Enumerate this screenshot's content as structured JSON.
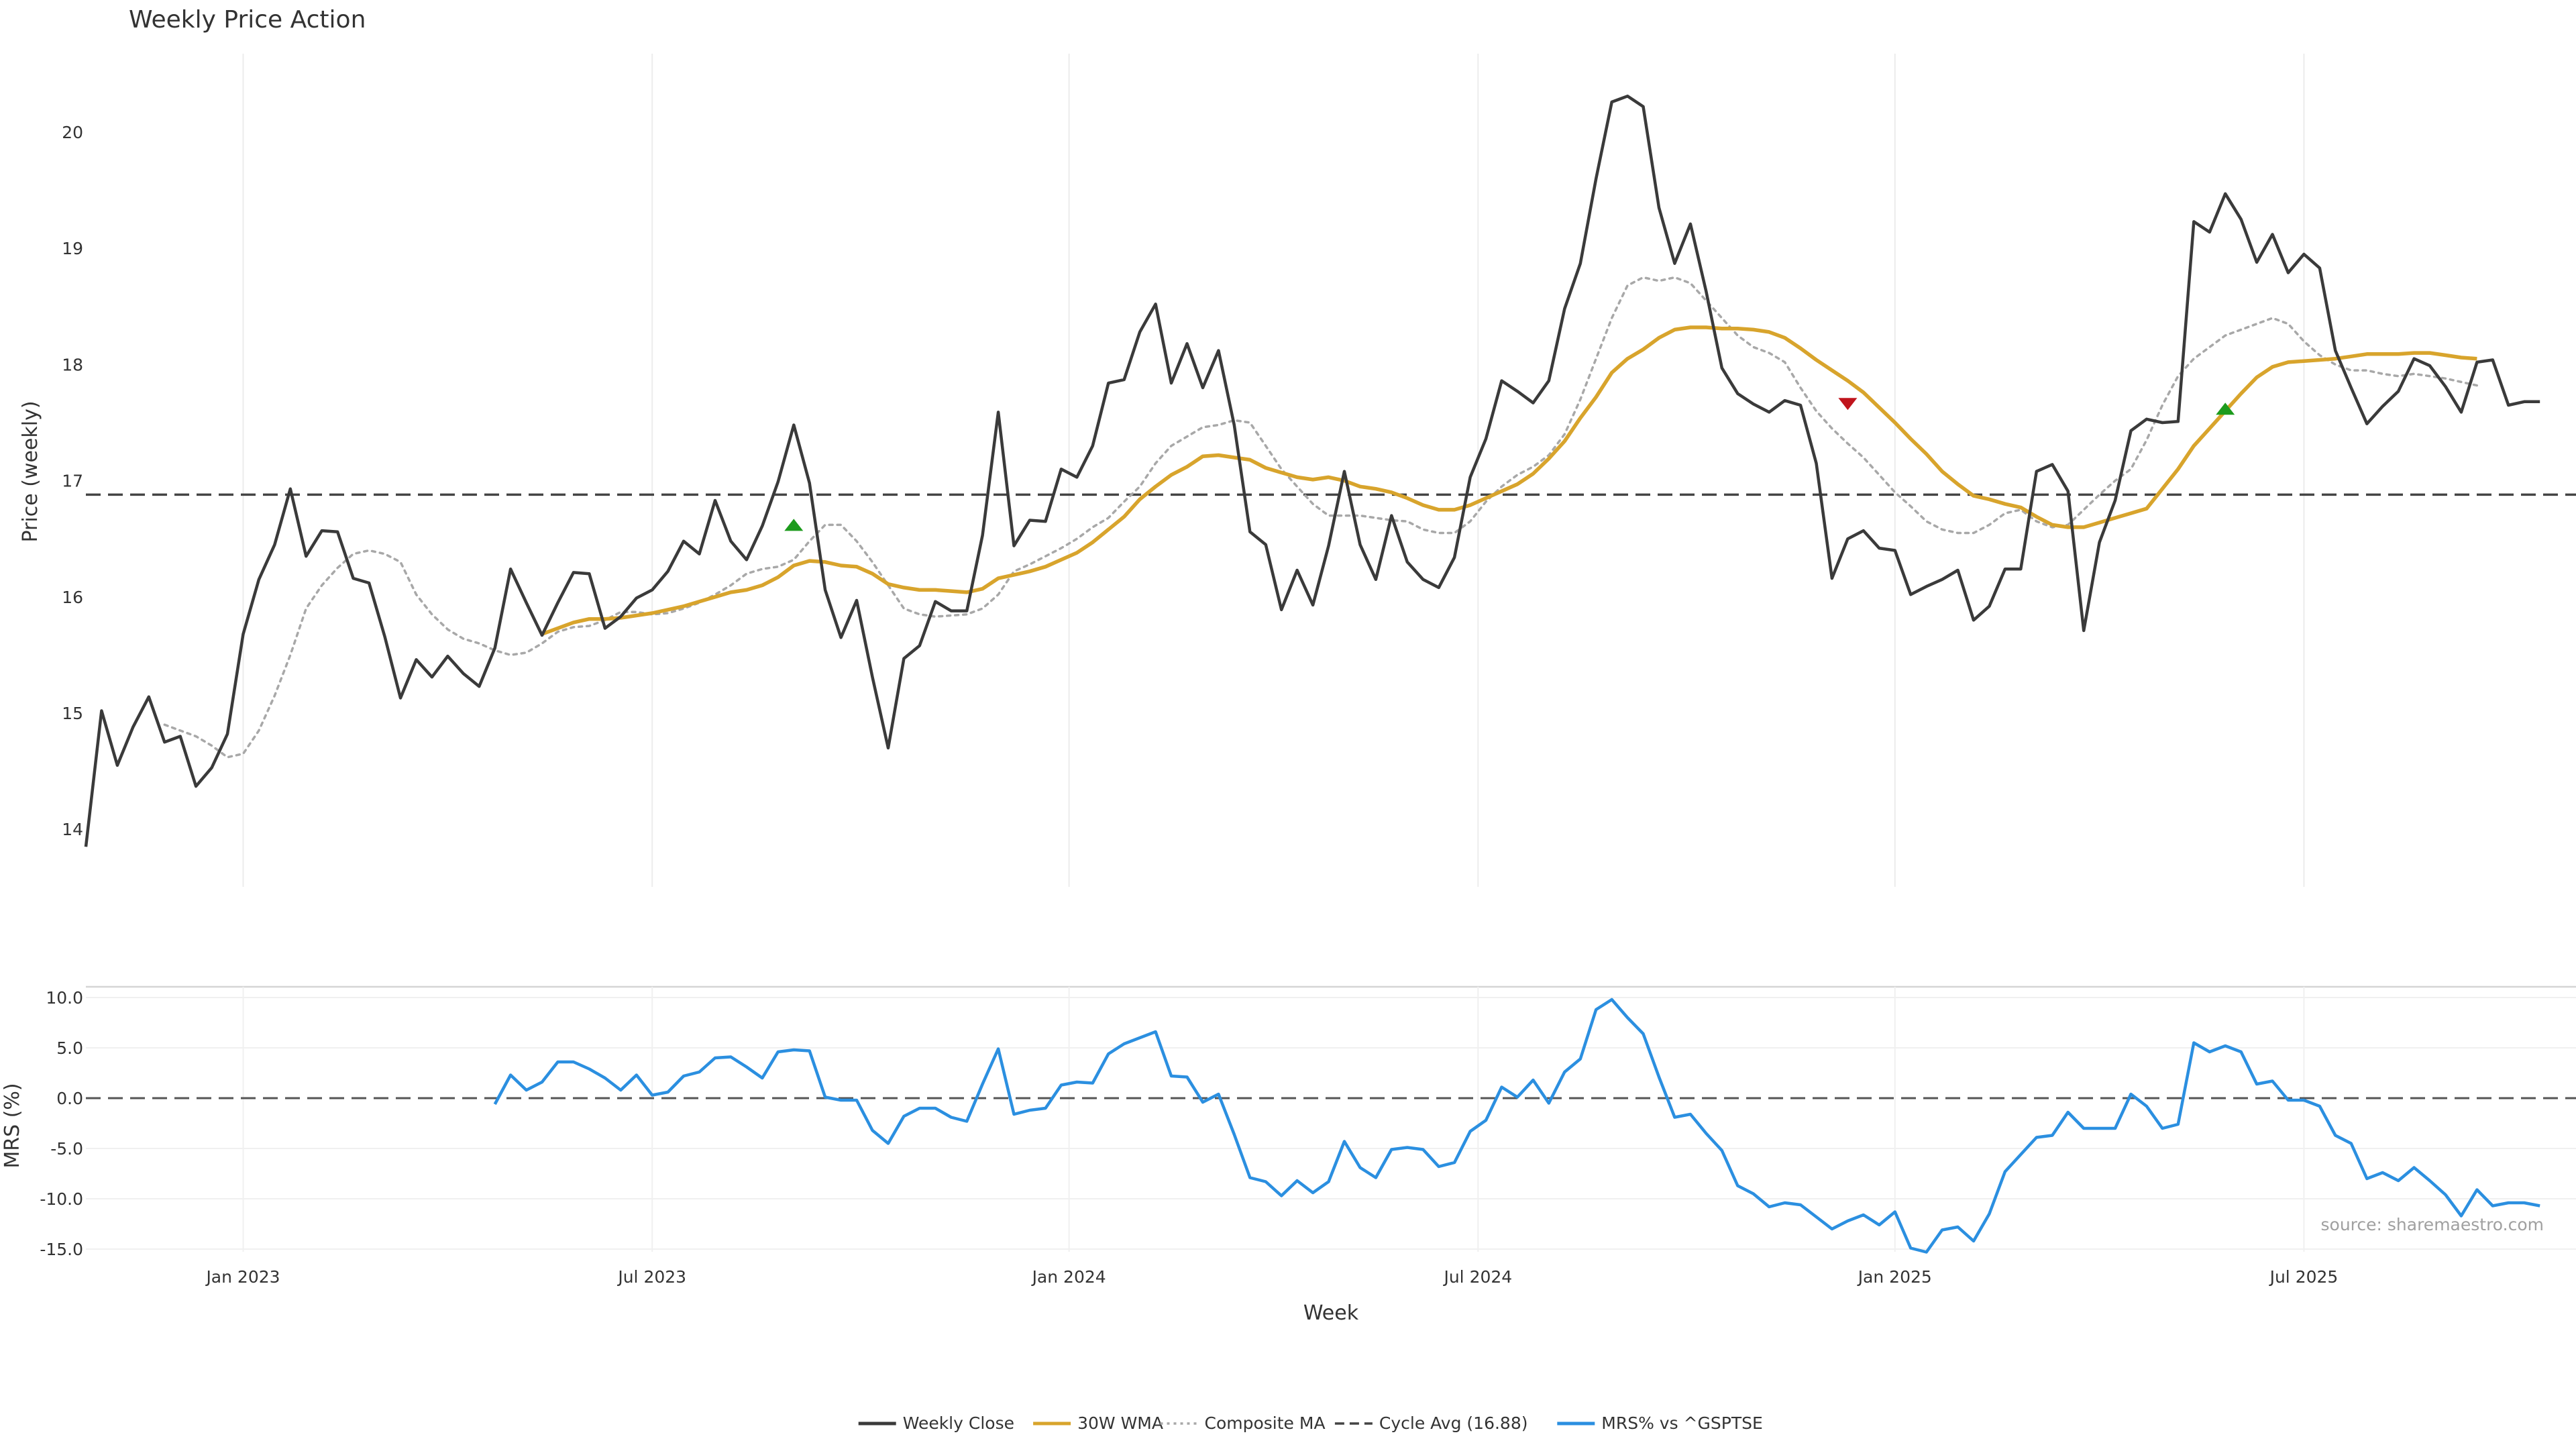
{
  "chart_data": [
    {
      "type": "line",
      "title": "Weekly Price Action",
      "ylabel": "Price (weekly)",
      "ylim": [
        13.8,
        20.6
      ],
      "yticks": [
        14,
        15,
        16,
        17,
        18,
        19,
        20
      ],
      "grid": "vertical",
      "reference_line": {
        "label": "Cycle Avg (16.88)",
        "value": 16.88
      },
      "series": [
        {
          "name": "Weekly Close",
          "color": "#3a3a3a",
          "values": [
            13.85,
            15.02,
            14.55,
            14.88,
            15.14,
            14.75,
            14.8,
            14.37,
            14.53,
            14.82,
            15.68,
            16.15,
            16.45,
            16.93,
            16.35,
            16.57,
            16.56,
            16.16,
            16.12,
            15.66,
            15.13,
            15.46,
            15.31,
            15.49,
            15.34,
            15.23,
            15.56,
            16.24,
            15.95,
            15.67,
            15.95,
            16.21,
            16.2,
            15.73,
            15.83,
            15.99,
            16.06,
            16.22,
            16.48,
            16.37,
            16.83,
            16.48,
            16.32,
            16.61,
            16.99,
            17.48,
            16.98,
            16.06,
            15.65,
            15.97,
            15.31,
            14.7,
            15.47,
            15.58,
            15.96,
            15.88,
            15.88,
            16.53,
            17.59,
            16.44,
            16.66,
            16.65,
            17.1,
            17.03,
            17.3,
            17.84,
            17.87,
            18.28,
            18.52,
            17.84,
            18.18,
            17.8,
            18.12,
            17.48,
            16.56,
            16.45,
            15.89,
            16.23,
            15.93,
            16.44,
            17.08,
            16.45,
            16.15,
            16.7,
            16.3,
            16.15,
            16.08,
            16.34,
            17.03,
            17.36,
            17.86,
            17.77,
            17.67,
            17.86,
            18.48,
            18.87,
            19.6,
            20.26,
            20.31,
            20.22,
            19.35,
            18.87,
            19.21,
            18.63,
            17.97,
            17.75,
            17.66,
            17.59,
            17.69,
            17.65,
            17.15,
            16.16,
            16.5,
            16.57,
            16.42,
            16.4,
            16.02,
            16.09,
            16.15,
            16.23,
            15.8,
            15.92,
            16.24,
            16.24,
            17.08,
            17.14,
            16.91,
            15.71,
            16.47,
            16.83,
            17.43,
            17.53,
            17.5,
            17.51,
            19.23,
            19.14,
            19.47,
            19.25,
            18.88,
            19.12,
            18.79,
            18.95,
            18.83,
            18.12,
            17.8,
            17.49,
            17.64,
            17.77,
            18.05,
            17.99,
            17.81,
            17.59,
            18.02,
            18.04,
            17.65,
            17.68,
            17.68
          ]
        },
        {
          "name": "30W WMA",
          "color": "#d8a42c",
          "start_index": 29,
          "values": [
            15.68,
            15.73,
            15.78,
            15.81,
            15.81,
            15.82,
            15.84,
            15.86,
            15.89,
            15.92,
            15.96,
            16.0,
            16.04,
            16.06,
            16.1,
            16.17,
            16.27,
            16.31,
            16.3,
            16.27,
            16.26,
            16.2,
            16.11,
            16.08,
            16.06,
            16.06,
            16.05,
            16.04,
            16.07,
            16.16,
            16.19,
            16.22,
            16.26,
            16.32,
            16.38,
            16.47,
            16.58,
            16.69,
            16.84,
            16.95,
            17.05,
            17.12,
            17.21,
            17.22,
            17.2,
            17.18,
            17.11,
            17.07,
            17.03,
            17.01,
            17.03,
            17.0,
            16.95,
            16.93,
            16.9,
            16.85,
            16.79,
            16.75,
            16.75,
            16.79,
            16.85,
            16.91,
            16.97,
            17.06,
            17.19,
            17.34,
            17.54,
            17.72,
            17.93,
            18.05,
            18.13,
            18.23,
            18.3,
            18.32,
            18.32,
            18.31,
            18.31,
            18.3,
            18.28,
            18.23,
            18.14,
            18.04,
            17.95,
            17.86,
            17.76,
            17.63,
            17.5,
            17.36,
            17.23,
            17.08,
            16.97,
            16.87,
            16.84,
            16.8,
            16.77,
            16.69,
            16.62,
            16.6,
            16.6,
            16.64,
            16.68,
            16.72,
            16.76,
            16.93,
            17.1,
            17.3,
            17.45,
            17.6,
            17.75,
            17.89,
            17.98,
            18.02,
            18.03,
            18.04,
            18.05,
            18.07,
            18.09,
            18.09,
            18.09,
            18.1,
            18.1,
            18.08,
            18.06,
            18.05
          ]
        },
        {
          "name": "Composite MA",
          "color": "#a8a8a8",
          "start_index": 5,
          "values": [
            14.9,
            14.85,
            14.8,
            14.72,
            14.62,
            14.65,
            14.85,
            15.15,
            15.5,
            15.9,
            16.1,
            16.25,
            16.37,
            16.4,
            16.37,
            16.3,
            16.02,
            15.85,
            15.72,
            15.64,
            15.6,
            15.54,
            15.5,
            15.52,
            15.6,
            15.7,
            15.74,
            15.75,
            15.8,
            15.87,
            15.87,
            15.85,
            15.86,
            15.9,
            15.95,
            16.02,
            16.1,
            16.2,
            16.24,
            16.26,
            16.32,
            16.48,
            16.62,
            16.62,
            16.48,
            16.3,
            16.1,
            15.9,
            15.85,
            15.83,
            15.84,
            15.85,
            15.9,
            16.02,
            16.22,
            16.28,
            16.35,
            16.42,
            16.5,
            16.6,
            16.68,
            16.82,
            16.95,
            17.15,
            17.3,
            17.38,
            17.46,
            17.48,
            17.52,
            17.5,
            17.3,
            17.1,
            16.95,
            16.8,
            16.7,
            16.7,
            16.7,
            16.68,
            16.66,
            16.65,
            16.58,
            16.55,
            16.55,
            16.65,
            16.82,
            16.95,
            17.05,
            17.12,
            17.22,
            17.4,
            17.7,
            18.05,
            18.4,
            18.68,
            18.75,
            18.72,
            18.75,
            18.7,
            18.55,
            18.4,
            18.25,
            18.15,
            18.1,
            18.02,
            17.8,
            17.6,
            17.45,
            17.32,
            17.2,
            17.05,
            16.9,
            16.78,
            16.65,
            16.58,
            16.55,
            16.55,
            16.62,
            16.72,
            16.75,
            16.65,
            16.6,
            16.62,
            16.75,
            16.88,
            17.0,
            17.1,
            17.35,
            17.65,
            17.9,
            18.05,
            18.15,
            18.25,
            18.3,
            18.35,
            18.4,
            18.35,
            18.2,
            18.08,
            18.0,
            17.95,
            17.95,
            17.92,
            17.9,
            17.92,
            17.9,
            17.88,
            17.85,
            17.82
          ]
        }
      ],
      "markers": [
        {
          "type": "buy",
          "symbol": "triangle-up",
          "color": "#1d9b1d",
          "index": 45,
          "value": 16.62
        },
        {
          "type": "sell",
          "symbol": "triangle-down",
          "color": "#c0141c",
          "index": 112,
          "value": 17.66
        },
        {
          "type": "buy",
          "symbol": "triangle-up",
          "color": "#1d9b1d",
          "index": 136,
          "value": 17.62
        }
      ]
    },
    {
      "type": "line",
      "ylabel": "MRS (%)",
      "ylim": [
        -15.8,
        10.8
      ],
      "yticks": [
        10.0,
        5.0,
        0.0,
        -5.0,
        -10.0,
        -15.0
      ],
      "xlabel": "Week",
      "xticks": [
        {
          "label": "Jan 2023",
          "index": 10
        },
        {
          "label": "Jul 2023",
          "index": 36
        },
        {
          "label": "Jan 2024",
          "index": 62.5
        },
        {
          "label": "Jul 2024",
          "index": 88.5
        },
        {
          "label": "Jan 2025",
          "index": 115
        },
        {
          "label": "Jul 2025",
          "index": 141
        }
      ],
      "zero_line": 0,
      "series": [
        {
          "name": "MRS% vs ^GSPTSE",
          "color": "#2b8fe0",
          "start_index": 26,
          "values": [
            -0.6,
            2.3,
            0.8,
            1.6,
            3.6,
            3.6,
            2.9,
            2.0,
            0.8,
            2.3,
            0.3,
            0.6,
            2.2,
            2.6,
            4.0,
            4.1,
            3.1,
            2.0,
            4.6,
            4.8,
            4.7,
            0.1,
            -0.2,
            -0.2,
            -3.2,
            -4.5,
            -1.8,
            -1.0,
            -1.0,
            -1.9,
            -2.3,
            1.4,
            4.9,
            -1.6,
            -1.2,
            -1.0,
            1.3,
            1.6,
            1.5,
            4.4,
            5.4,
            6.0,
            6.6,
            2.2,
            2.1,
            -0.4,
            0.4,
            -3.6,
            -7.9,
            -8.3,
            -9.7,
            -8.2,
            -9.4,
            -8.3,
            -4.3,
            -6.9,
            -7.9,
            -5.1,
            -4.9,
            -5.1,
            -6.8,
            -6.4,
            -3.3,
            -2.2,
            1.1,
            0.1,
            1.8,
            -0.5,
            2.6,
            3.9,
            8.8,
            9.8,
            8.0,
            6.4,
            2.1,
            -1.9,
            -1.6,
            -3.5,
            -5.2,
            -8.7,
            -9.5,
            -10.8,
            -10.4,
            -10.6,
            -11.8,
            -13.0,
            -12.2,
            -11.6,
            -12.6,
            -11.3,
            -14.9,
            -15.3,
            -13.1,
            -12.8,
            -14.2,
            -11.5,
            -7.3,
            -5.6,
            -3.9,
            -3.7,
            -1.4,
            -3.0,
            -3.0,
            -3.0,
            0.4,
            -0.8,
            -3.0,
            -2.6,
            5.5,
            4.6,
            5.2,
            4.6,
            1.4,
            1.7,
            -0.2,
            -0.2,
            -0.8,
            -3.7,
            -4.5,
            -8.0,
            -7.4,
            -8.2,
            -6.9,
            -8.2,
            -9.6,
            -11.7,
            -9.1,
            -10.7,
            -10.4,
            -10.4,
            -10.7
          ]
        }
      ],
      "annotation": "source: sharemaestro.com"
    }
  ],
  "legend": {
    "position": "bottom-center",
    "items": [
      {
        "label": "Weekly Close",
        "style": "solid",
        "color": "#3a3a3a"
      },
      {
        "label": "30W WMA",
        "style": "solid",
        "color": "#d8a42c"
      },
      {
        "label": "Composite MA",
        "style": "dotted",
        "color": "#a8a8a8"
      },
      {
        "label": "Cycle Avg (16.88)",
        "style": "dashed",
        "color": "#444444"
      },
      {
        "label": "MRS% vs ^GSPTSE",
        "style": "solid",
        "color": "#2b8fe0"
      }
    ]
  }
}
